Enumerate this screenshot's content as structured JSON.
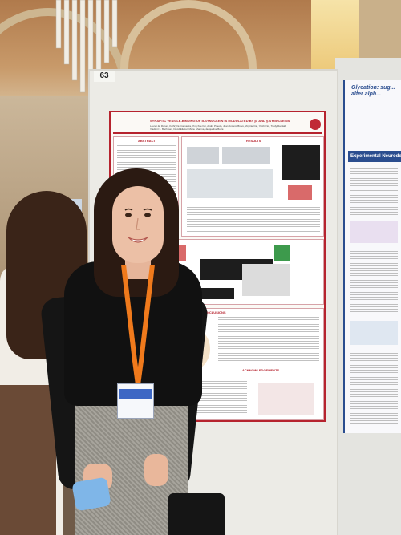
{
  "scene": {
    "board_number": "63",
    "poster_main": {
      "title": "SYNAPTIC VESICLE-BINDING OF α-SYNUCLEIN IS MODULATED BY β- AND γ-SYNUCLEINS",
      "authors": "Lauren E. Ronan, Kathryl E. Carnazza, Ying Xue Fei, André Pineda, Juan Antonio Bravo, Virginie Dai, Yuichi Noi, Trudy Ramlall, Vladimir L. Buchman, David Eliezer, Manu Sharma, Jacqueline Burré",
      "sections": {
        "abstract": "ABSTRACT",
        "results": "RESULTS",
        "conclusions": "CONCLUSIONS",
        "acknowledgements": "ACKNOWLEDGEMENTS"
      }
    },
    "poster_right": {
      "title": "Glycation: sug... alter alph...",
      "band": "Experimental Neurodegenerati..."
    },
    "colors": {
      "poster_accent": "#b6232e",
      "right_poster_accent": "#2a4d8f",
      "lanyard": "#f07a1c",
      "badge_band": "#3d67c4",
      "mask": "#7fb6e8"
    }
  }
}
